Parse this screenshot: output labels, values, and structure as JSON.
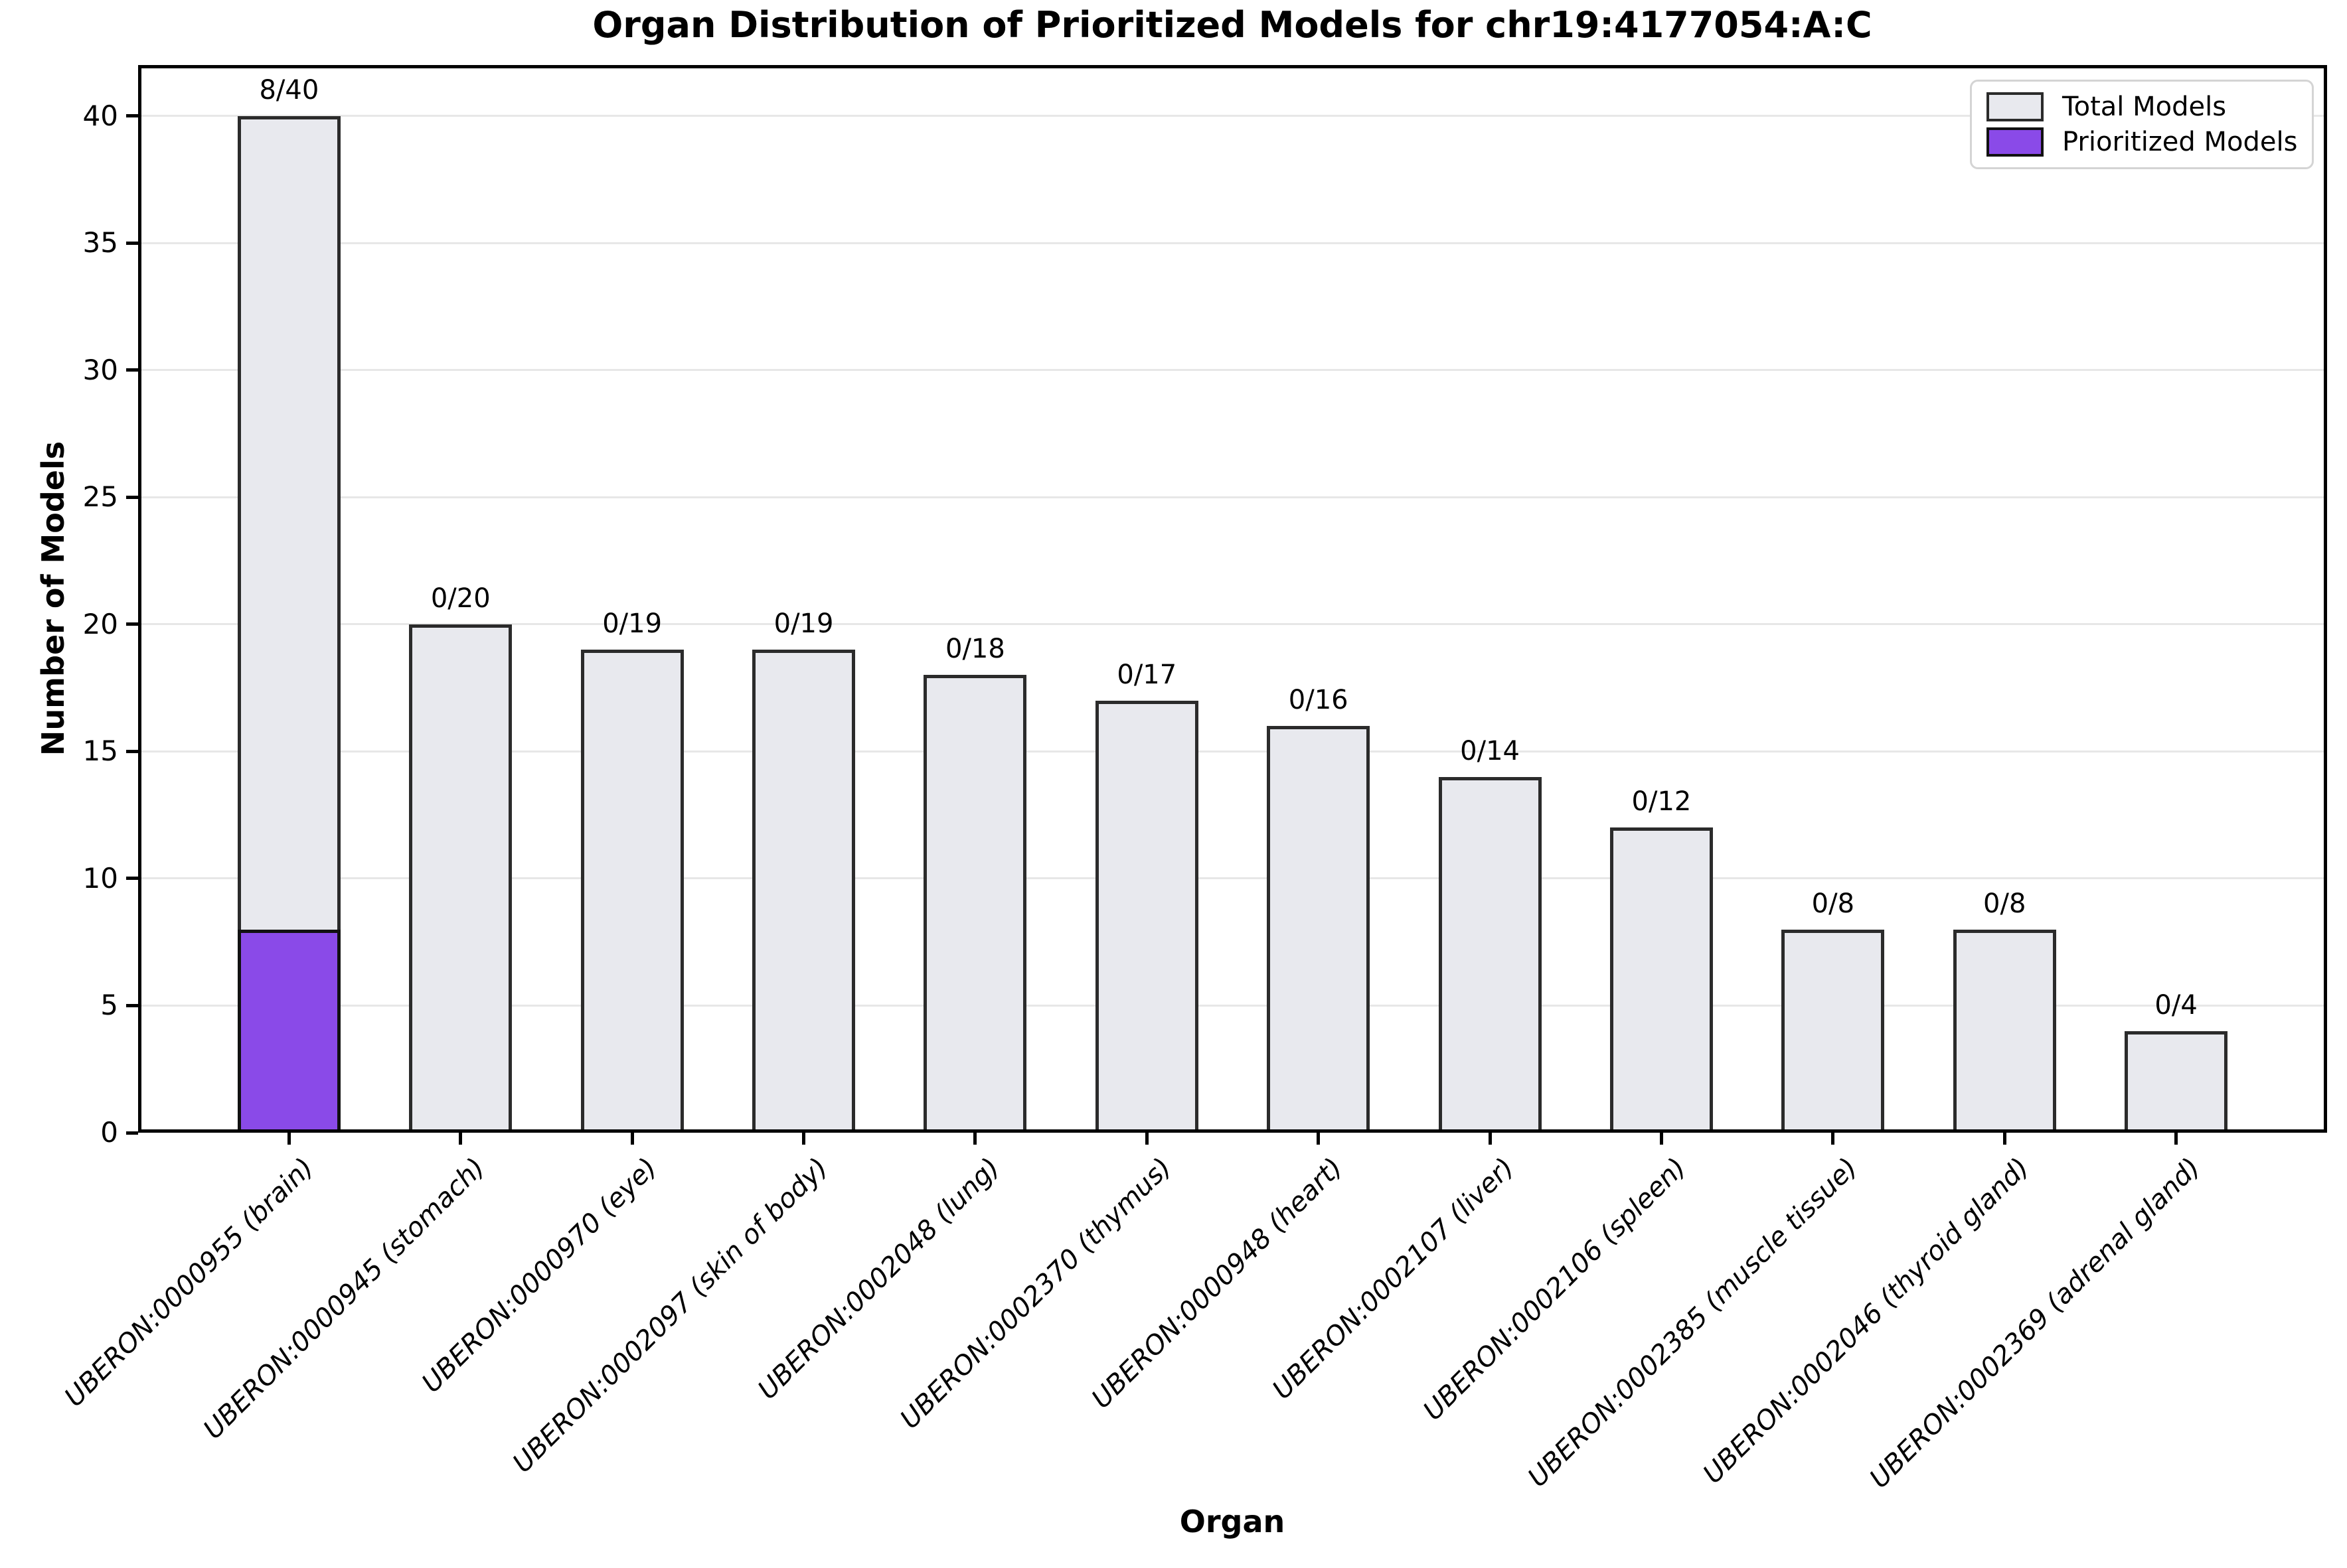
{
  "title": "Organ Distribution of Prioritized Models for chr19:4177054:A:C",
  "chart_data": {
    "type": "bar",
    "title": "Organ Distribution of Prioritized Models for chr19:4177054:A:C",
    "xlabel": "Organ",
    "ylabel": "Number of Models",
    "ylim": [
      0,
      42
    ],
    "yticks": [
      0,
      5,
      10,
      15,
      20,
      25,
      30,
      35,
      40
    ],
    "grid": true,
    "legend_position": "upper right",
    "categories": [
      "UBERON:0000955 (brain)",
      "UBERON:0000945 (stomach)",
      "UBERON:0000970 (eye)",
      "UBERON:0002097 (skin of body)",
      "UBERON:0002048 (lung)",
      "UBERON:0002370 (thymus)",
      "UBERON:0000948 (heart)",
      "UBERON:0002107 (liver)",
      "UBERON:0002106 (spleen)",
      "UBERON:0002385 (muscle tissue)",
      "UBERON:0002046 (thyroid gland)",
      "UBERON:0002369 (adrenal gland)"
    ],
    "series": [
      {
        "name": "Total Models",
        "values": [
          40,
          20,
          19,
          19,
          18,
          17,
          16,
          14,
          12,
          8,
          8,
          4
        ],
        "color": "#e8e9ee",
        "edge_color": "#2b2b2b"
      },
      {
        "name": "Prioritized Models",
        "values": [
          8,
          0,
          0,
          0,
          0,
          0,
          0,
          0,
          0,
          0,
          0,
          0
        ],
        "color": "#8a4ae8",
        "edge_color": "#111111"
      }
    ],
    "bar_labels": [
      "8/40",
      "0/20",
      "0/19",
      "0/19",
      "0/18",
      "0/17",
      "0/16",
      "0/14",
      "0/12",
      "0/8",
      "0/8",
      "0/4"
    ]
  },
  "legend": {
    "items": [
      {
        "label": "Total Models",
        "fill": "#e8e9ee",
        "edge": "#2b2b2b"
      },
      {
        "label": "Prioritized Models",
        "fill": "#8a4ae8",
        "edge": "#111111"
      }
    ]
  },
  "colors": {
    "background": "#ffffff",
    "spine": "#000000",
    "grid": "#e7e7e7",
    "text": "#000000",
    "total_fill": "#e8e9ee",
    "total_edge": "#2b2b2b",
    "prioritized_fill": "#8a4ae8",
    "prioritized_edge": "#111111",
    "legend_border": "#d4d4d4"
  }
}
